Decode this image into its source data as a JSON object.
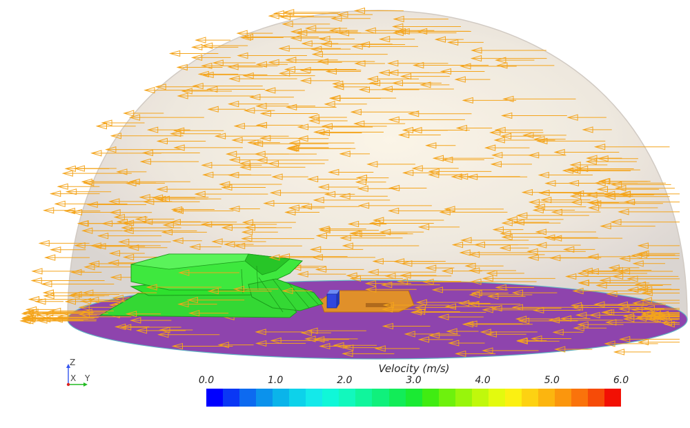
{
  "legend": {
    "title": "Velocity (m/s)",
    "ticks": [
      "0.0",
      "1.0",
      "2.0",
      "3.0",
      "4.0",
      "5.0",
      "6.0"
    ],
    "range": [
      0.0,
      6.0
    ],
    "colors": [
      "#0000ff",
      "#0a37f5",
      "#0d6af0",
      "#0b92ec",
      "#0ab4ea",
      "#0dd2ea",
      "#14e9ea",
      "#10f7d8",
      "#12f8bd",
      "#10f59c",
      "#10f07c",
      "#12ec58",
      "#1aea33",
      "#40ec12",
      "#6ef10d",
      "#98f50c",
      "#c0f80c",
      "#e3fa0e",
      "#fbf012",
      "#fdd212",
      "#fcb50f",
      "#fb960d",
      "#fa730b",
      "#f64b08",
      "#f21004"
    ]
  },
  "axes": {
    "z": "Z",
    "x": "X",
    "y": "Y"
  },
  "scene": {
    "dome_color": "#e8e1d8",
    "ground_color": "#8e44ad",
    "vector_color": "#f4a41b",
    "building_color": "#2ee02e",
    "tower_color": "#2f47e0",
    "slab_color": "#e5962c"
  }
}
